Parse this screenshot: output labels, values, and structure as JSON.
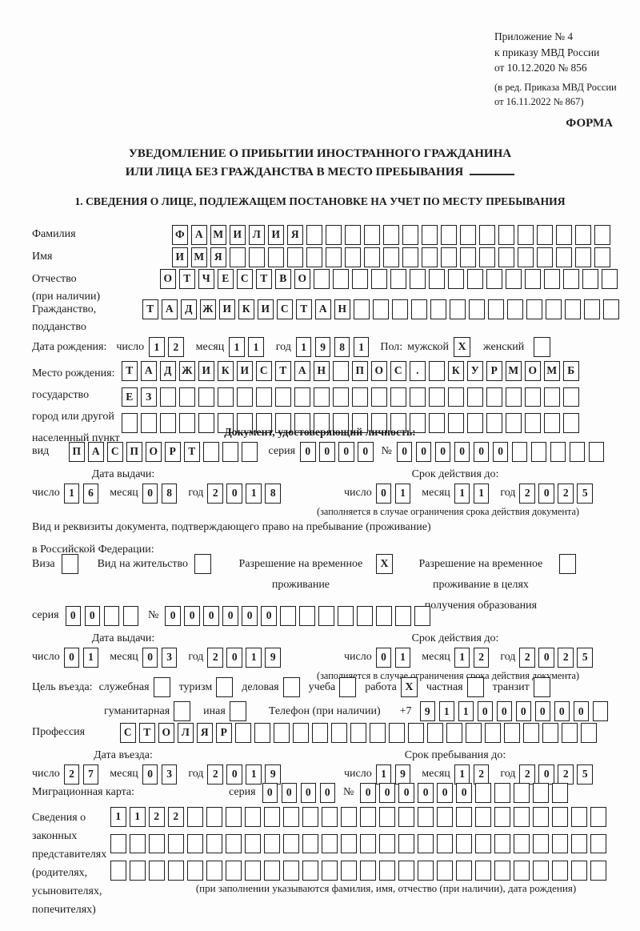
{
  "annex": {
    "line1": "Приложение № 4",
    "line2": "к приказу МВД России",
    "line3": "от 10.12.2020 № 856",
    "line4": "(в ред. Приказа МВД России",
    "line5": "от 16.11.2022 № 867)"
  },
  "form_label": "ФОРМА",
  "title": {
    "line1": "УВЕДОМЛЕНИЕ О ПРИБЫТИИ ИНОСТРАННОГО ГРАЖДАНИНА",
    "line2": "ИЛИ ЛИЦА БЕЗ ГРАЖДАНСТВА В МЕСТО ПРЕБЫВАНИЯ"
  },
  "section1_title": "1. СВЕДЕНИЯ О ЛИЦЕ, ПОДЛЕЖАЩЕМ ПОСТАНОВКЕ НА УЧЕТ ПО МЕСТУ ПРЕБЫВАНИЯ",
  "date_labels": {
    "day": "число",
    "month": "месяц",
    "year": "год"
  },
  "person": {
    "surname": {
      "label": "Фамилия",
      "boxes": {
        "t": "ФАМИЛИЯ",
        "n": 23
      }
    },
    "name": {
      "label": "Имя",
      "boxes": {
        "t": "ИМЯ",
        "n": 23
      }
    },
    "patronymic": {
      "label1": "Отчество",
      "label2": "(при наличии)",
      "boxes": {
        "t": "ОТЧЕСТВО",
        "n": 24
      }
    },
    "citizenship": {
      "label1": "Гражданство,",
      "label2": "подданство",
      "boxes": {
        "t": "ТАДЖИКИСТАН",
        "n": 25
      }
    },
    "birth_date": {
      "label": "Дата рождения:",
      "day": "12",
      "month": "11",
      "year": "1981"
    },
    "sex": {
      "label": "Пол:",
      "male_label": "мужской",
      "male_checked": true,
      "female_label": "женский",
      "female_checked": false
    },
    "birth_place": {
      "label1": "Место рождения:",
      "label2": "государство",
      "label3": "город или другой",
      "label4": "населенный пункт",
      "row1": {
        "t": "ТАДЖИКИСТАН ПОС. КУРМОМБ",
        "n": 24
      },
      "row2": {
        "t": "ЕЗ",
        "n": 24
      },
      "row3": {
        "t": "",
        "n": 24
      }
    }
  },
  "identity_doc": {
    "header": "Документ, удостоверяющий личность:",
    "kind_label": "вид",
    "kind": {
      "t": "ПАСПОРТ",
      "n": 10
    },
    "series_label": "серия",
    "series": {
      "t": "0000",
      "n": 4
    },
    "number_label": "№",
    "number": {
      "t": "000000",
      "n": 11
    },
    "issue_header": "Дата выдачи:",
    "issue": {
      "day": "16",
      "month": "08",
      "year": "2018"
    },
    "valid_header": "Срок действия до:",
    "valid": {
      "day": "01",
      "month": "11",
      "year": "2025"
    },
    "note": "(заполняется в случае ограничения срока действия документа)"
  },
  "residence_doc": {
    "intro1": "Вид и реквизиты документа, подтверждающего право на пребывание (проживание)",
    "intro2": "в Российской Федерации:",
    "options": [
      {
        "label": "Виза",
        "checked": false
      },
      {
        "label": "Вид на жительство",
        "checked": false
      },
      {
        "label": "Разрешение на временное проживание",
        "checked": true
      },
      {
        "label": "Разрешение на временное проживание в целях получения образования",
        "checked": false
      }
    ],
    "series_label": "серия",
    "series": {
      "t": "00",
      "n": 4
    },
    "number_label": "№",
    "number": {
      "t": "000000",
      "n": 14
    },
    "issue_header": "Дата выдачи:",
    "issue": {
      "day": "01",
      "month": "03",
      "year": "2019"
    },
    "valid_header": "Срок действия до:",
    "valid": {
      "day": "01",
      "month": "12",
      "year": "2025"
    },
    "note": "(заполняется в случае ограничения срока действия документа)"
  },
  "visit": {
    "purpose_label": "Цель въезда:",
    "purposes": [
      {
        "label": "служебная",
        "checked": false
      },
      {
        "label": "туризм",
        "checked": false
      },
      {
        "label": "деловая",
        "checked": false
      },
      {
        "label": "учеба",
        "checked": false
      },
      {
        "label": "работа",
        "checked": true
      },
      {
        "label": "частная",
        "checked": false
      },
      {
        "label": "транзит",
        "checked": false
      },
      {
        "label": "гуманитарная",
        "checked": false
      },
      {
        "label": "иная",
        "checked": false
      }
    ],
    "phone_label": "Телефон (при наличии)",
    "phone_prefix": "+7",
    "phone": {
      "t": "911000000",
      "n": 10
    },
    "profession_label": "Профессия",
    "profession": {
      "t": "СТОЛЯР",
      "n": 25
    },
    "entry_header": "Дата въезда:",
    "entry": {
      "day": "27",
      "month": "03",
      "year": "2019"
    },
    "stay_header": "Срок пребывания до:",
    "stay": {
      "day": "19",
      "month": "12",
      "year": "2025"
    },
    "migration_card": {
      "label": "Миграционная карта:",
      "series_label": "серия",
      "series": {
        "t": "0000",
        "n": 4
      },
      "number_label": "№",
      "number": {
        "t": "000000",
        "n": 11
      }
    }
  },
  "representatives": {
    "label1": "Сведения о",
    "label2": "законных",
    "label3": "представителях",
    "label4": "(родителях,",
    "label5": "усыновителях,",
    "label6": "попечителях)",
    "row1": {
      "t": "1122",
      "n": 26
    },
    "row2": {
      "t": "",
      "n": 26
    },
    "row3": {
      "t": "",
      "n": 26
    },
    "note": "(при заполнении указываются фамилия, имя, отчество (при наличии), дата рождения)"
  }
}
